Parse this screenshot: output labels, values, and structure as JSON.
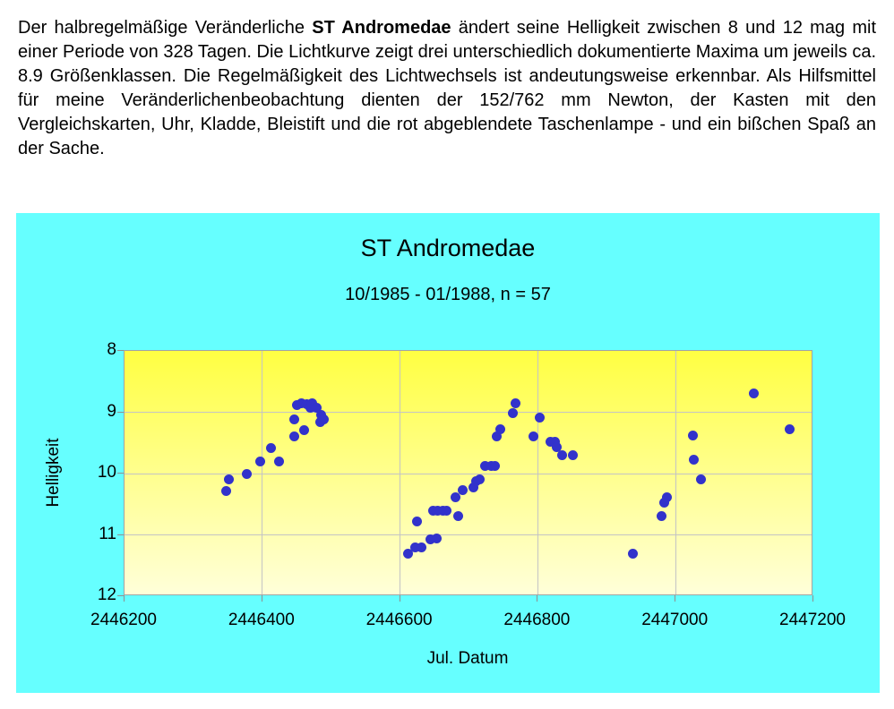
{
  "intro": {
    "part1": "Der halbregelmäßige Veränderliche ",
    "bold": "ST Andromedae",
    "part2": " ändert seine Helligkeit zwischen 8 und 12 mag mit einer Periode von 328 Tagen. Die Lichtkurve zeigt drei unterschiedlich dokumentierte Maxima um jeweils ca. 8.9 Größenklassen. Die Regelmäßigkeit des Lichtwechsels ist andeutungsweise erkennbar. Als Hilfsmittel für meine Veränderlichenbeobachtung dienten der 152/762 mm Newton, der Kasten mit den Vergleichskarten, Uhr, Kladde, Bleistift und die rot abgeblendete Taschenlampe - und ein bißchen Spaß an der Sache."
  },
  "chart_data": {
    "type": "scatter",
    "title": "ST Andromedae",
    "subtitle": "10/1985 - 01/1988, n = 57",
    "xlabel": "Jul. Datum",
    "ylabel": "Helligkeit",
    "n": 57,
    "xlim": [
      2446200,
      2447200
    ],
    "ylim": [
      8,
      12
    ],
    "y_axis_inverted_magnitude": true,
    "x_ticks": [
      2446200,
      2446400,
      2446600,
      2446800,
      2447000,
      2447200
    ],
    "y_ticks": [
      8,
      9,
      10,
      11,
      12
    ],
    "grid": true,
    "legend": "none",
    "colors": {
      "chart_bg": "#66ffff",
      "plot_top": "#ffff42",
      "plot_bottom": "#ffffd9",
      "point": "#3232cb",
      "grid": "#c4c4c4"
    },
    "points": [
      [
        2446347,
        10.29
      ],
      [
        2446352,
        10.1
      ],
      [
        2446378,
        10.0
      ],
      [
        2446397,
        9.81
      ],
      [
        2446413,
        9.59
      ],
      [
        2446424,
        9.8
      ],
      [
        2446446,
        9.11
      ],
      [
        2446447,
        9.4
      ],
      [
        2446450,
        8.89
      ],
      [
        2446457,
        8.85
      ],
      [
        2446461,
        9.29
      ],
      [
        2446464,
        8.87
      ],
      [
        2446470,
        8.93
      ],
      [
        2446473,
        8.86
      ],
      [
        2446479,
        8.93
      ],
      [
        2446484,
        9.16
      ],
      [
        2446486,
        9.05
      ],
      [
        2446489,
        9.11
      ],
      [
        2446612,
        11.3
      ],
      [
        2446622,
        11.21
      ],
      [
        2446625,
        10.78
      ],
      [
        2446631,
        11.2
      ],
      [
        2446644,
        11.08
      ],
      [
        2446648,
        10.6
      ],
      [
        2446653,
        11.06
      ],
      [
        2446655,
        10.6
      ],
      [
        2446662,
        10.61
      ],
      [
        2446667,
        10.6
      ],
      [
        2446681,
        10.38
      ],
      [
        2446684,
        10.69
      ],
      [
        2446691,
        10.27
      ],
      [
        2446706,
        10.22
      ],
      [
        2446710,
        10.12
      ],
      [
        2446716,
        10.09
      ],
      [
        2446724,
        9.88
      ],
      [
        2446732,
        9.87
      ],
      [
        2446738,
        9.88
      ],
      [
        2446740,
        9.4
      ],
      [
        2446745,
        9.28
      ],
      [
        2446764,
        9.01
      ],
      [
        2446768,
        8.85
      ],
      [
        2446793,
        9.39
      ],
      [
        2446803,
        9.09
      ],
      [
        2446818,
        9.48
      ],
      [
        2446825,
        9.48
      ],
      [
        2446827,
        9.57
      ],
      [
        2446835,
        9.7
      ],
      [
        2446851,
        9.7
      ],
      [
        2446938,
        11.3
      ],
      [
        2446980,
        10.7
      ],
      [
        2446984,
        10.48
      ],
      [
        2446988,
        10.39
      ],
      [
        2447025,
        9.38
      ],
      [
        2447027,
        9.78
      ],
      [
        2447037,
        10.09
      ],
      [
        2447113,
        8.69
      ],
      [
        2447165,
        9.28
      ]
    ]
  }
}
